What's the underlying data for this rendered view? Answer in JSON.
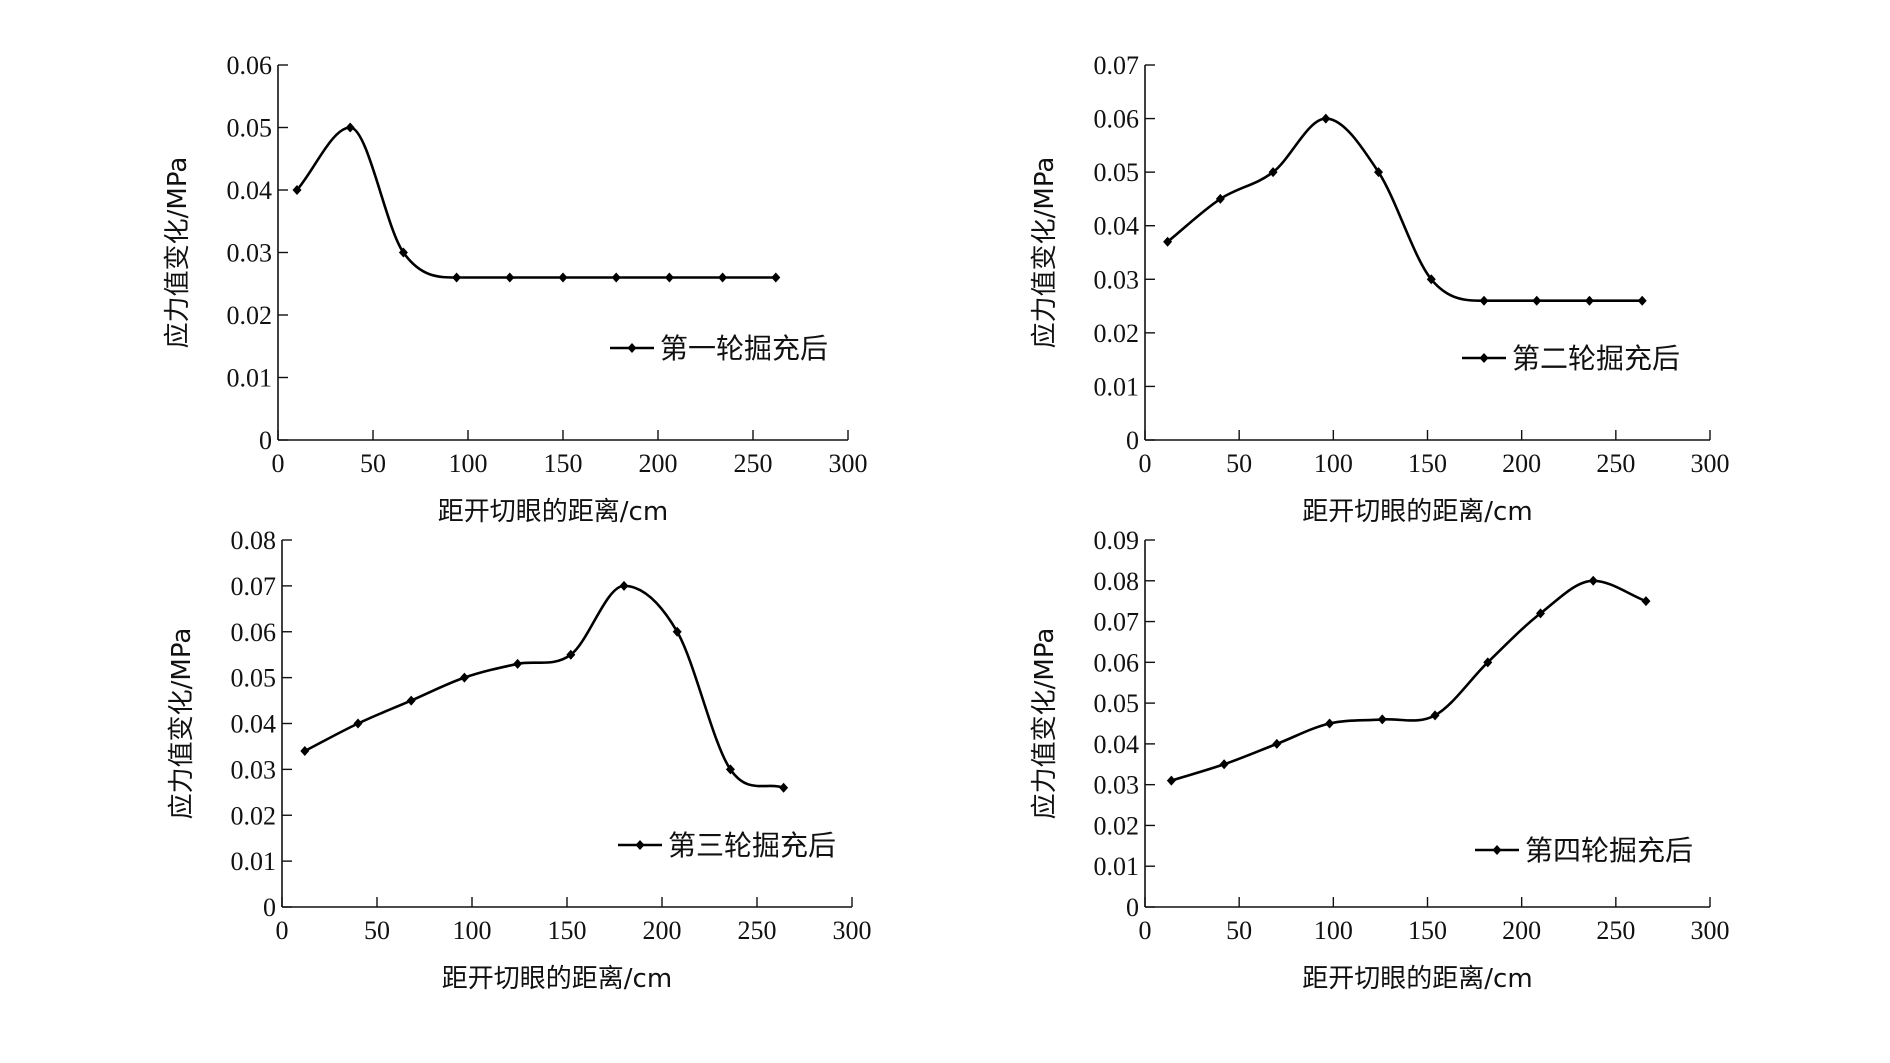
{
  "chart_data": [
    {
      "type": "line",
      "title": "",
      "xlabel": "距开切眼的距离/cm",
      "ylabel": "应力值变化/MPa",
      "xlim": [
        0,
        300
      ],
      "ylim": [
        0,
        0.06
      ],
      "x_ticks": [
        "0",
        "50",
        "100",
        "150",
        "200",
        "250",
        "300"
      ],
      "y_ticks": [
        "0",
        "0.01",
        "0.02",
        "0.03",
        "0.04",
        "0.05",
        "0.06"
      ],
      "grid": false,
      "legend": "right",
      "series": [
        {
          "name": "第一轮掘充后",
          "x": [
            10,
            38,
            66,
            94,
            122,
            150,
            178,
            206,
            234,
            262
          ],
          "y": [
            0.04,
            0.05,
            0.03,
            0.026,
            0.026,
            0.026,
            0.026,
            0.026,
            0.026,
            0.026
          ]
        }
      ]
    },
    {
      "type": "line",
      "title": "",
      "xlabel": "距开切眼的距离/cm",
      "ylabel": "应力值变化/MPa",
      "xlim": [
        0,
        300
      ],
      "ylim": [
        0,
        0.07
      ],
      "x_ticks": [
        "0",
        "50",
        "100",
        "150",
        "200",
        "250",
        "300"
      ],
      "y_ticks": [
        "0",
        "0.01",
        "0.02",
        "0.03",
        "0.04",
        "0.05",
        "0.06",
        "0.07"
      ],
      "grid": false,
      "legend": "right",
      "series": [
        {
          "name": "第二轮掘充后",
          "x": [
            12,
            40,
            68,
            96,
            124,
            152,
            180,
            208,
            236,
            264
          ],
          "y": [
            0.037,
            0.045,
            0.05,
            0.06,
            0.05,
            0.03,
            0.026,
            0.026,
            0.026,
            0.026
          ]
        }
      ]
    },
    {
      "type": "line",
      "title": "",
      "xlabel": "距开切眼的距离/cm",
      "ylabel": "应力值变化/MPa",
      "xlim": [
        0,
        300
      ],
      "ylim": [
        0,
        0.08
      ],
      "x_ticks": [
        "0",
        "50",
        "100",
        "150",
        "200",
        "250",
        "300"
      ],
      "y_ticks": [
        "0",
        "0.01",
        "0.02",
        "0.03",
        "0.04",
        "0.05",
        "0.06",
        "0.07",
        "0.08"
      ],
      "grid": false,
      "legend": "lower-right",
      "series": [
        {
          "name": "第三轮掘充后",
          "x": [
            12,
            40,
            68,
            96,
            124,
            152,
            180,
            208,
            236,
            264
          ],
          "y": [
            0.034,
            0.04,
            0.045,
            0.05,
            0.053,
            0.055,
            0.07,
            0.06,
            0.03,
            0.026
          ]
        }
      ]
    },
    {
      "type": "line",
      "title": "",
      "xlabel": "距开切眼的距离/cm",
      "ylabel": "应力值变化/MPa",
      "xlim": [
        0,
        300
      ],
      "ylim": [
        0,
        0.09
      ],
      "x_ticks": [
        "0",
        "50",
        "100",
        "150",
        "200",
        "250",
        "300"
      ],
      "y_ticks": [
        "0",
        "0.01",
        "0.02",
        "0.03",
        "0.04",
        "0.05",
        "0.06",
        "0.07",
        "0.08",
        "0.09"
      ],
      "grid": false,
      "legend": "lower-right",
      "series": [
        {
          "name": "第四轮掘充后",
          "x": [
            14,
            42,
            70,
            98,
            126,
            154,
            182,
            210,
            238,
            266
          ],
          "y": [
            0.031,
            0.035,
            0.04,
            0.045,
            0.046,
            0.047,
            0.06,
            0.072,
            0.08,
            0.075
          ]
        }
      ]
    }
  ]
}
